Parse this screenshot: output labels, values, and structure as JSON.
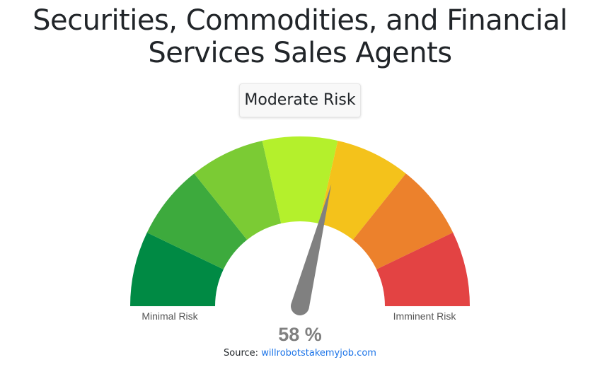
{
  "title": "Securities, Commodities, and Financial Services Sales Agents",
  "risk_label": "Moderate Risk",
  "gauge": {
    "value": 58,
    "value_text": "58 %",
    "min_label": "Minimal Risk",
    "max_label": "Imminent Risk",
    "band_colors": [
      "#008A44",
      "#3DAA3D",
      "#7BCB34",
      "#B4F02C",
      "#F4C21B",
      "#EC812C",
      "#E34343"
    ],
    "needle_color": "#808080"
  },
  "source": {
    "prefix": "Source: ",
    "link_text": "willrobotstakemyjob.com"
  }
}
